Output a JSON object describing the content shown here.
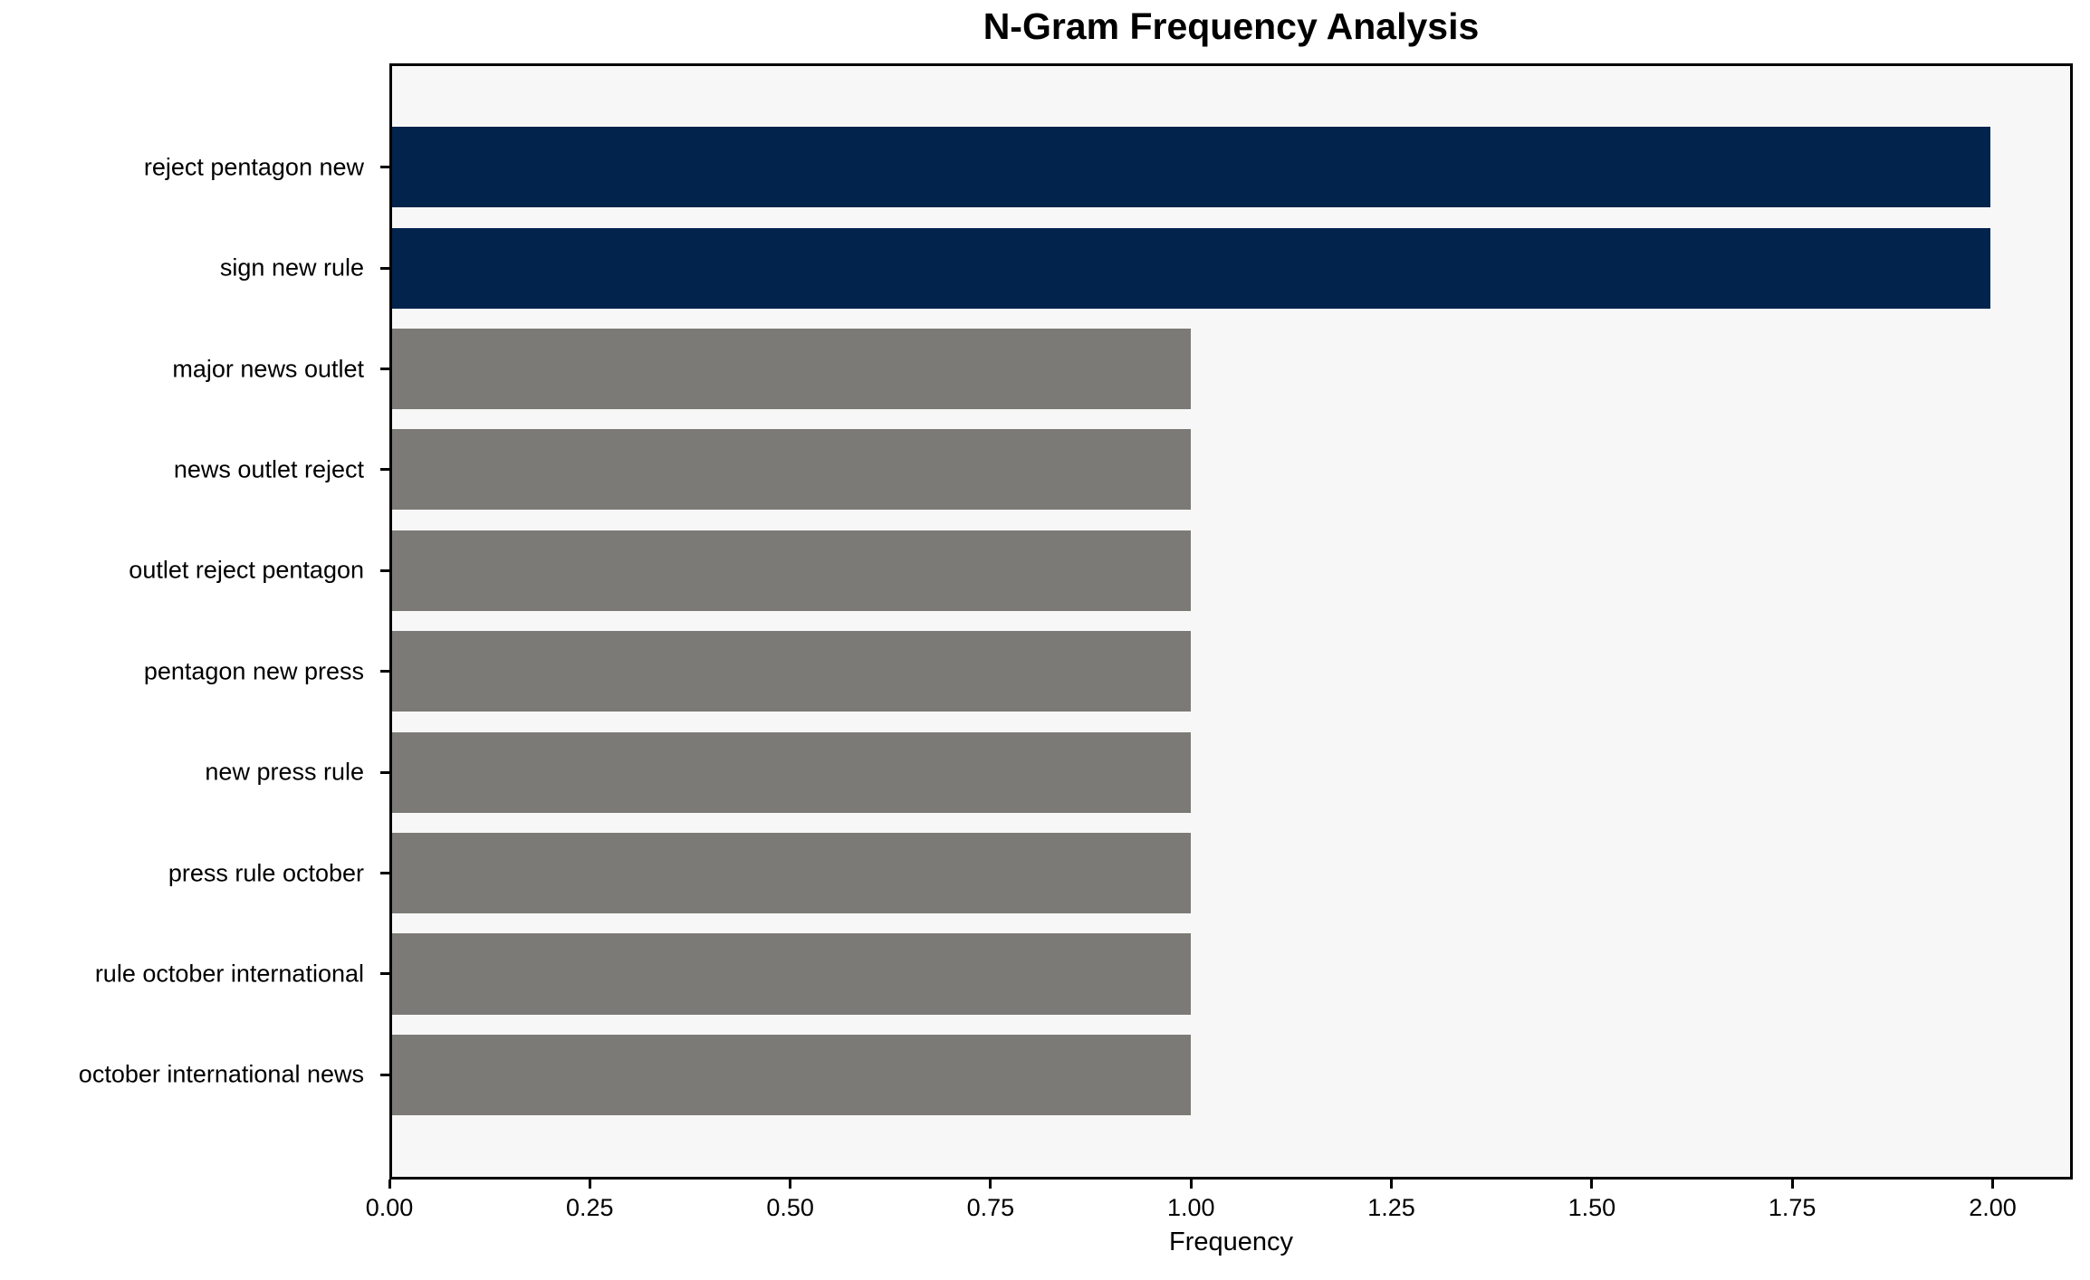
{
  "chart_data": {
    "type": "bar",
    "orientation": "horizontal",
    "title": "N-Gram Frequency Analysis",
    "xlabel": "Frequency",
    "ylabel": "",
    "categories": [
      "reject pentagon new",
      "sign new rule",
      "major news outlet",
      "news outlet reject",
      "outlet reject pentagon",
      "pentagon new press",
      "new press rule",
      "press rule october",
      "rule october international",
      "october international news"
    ],
    "values": [
      2,
      2,
      1,
      1,
      1,
      1,
      1,
      1,
      1,
      1
    ],
    "bar_colors": [
      "#02234c",
      "#02234c",
      "#7b7a76",
      "#7b7a76",
      "#7b7a76",
      "#7b7a76",
      "#7b7a76",
      "#7b7a76",
      "#7b7a76",
      "#7b7a76"
    ],
    "xlim": [
      0,
      2.1
    ],
    "x_ticks": [
      "0.00",
      "0.25",
      "0.50",
      "0.75",
      "1.00",
      "1.25",
      "1.50",
      "1.75",
      "2.00"
    ],
    "bar_height_fraction": 0.8,
    "grid": false,
    "legend": null,
    "colors": {
      "highlight": "#02234c",
      "default": "#7b7a76",
      "plot_background": "#f8f7f7",
      "figure_background": "#ffffff",
      "axis": "#000000",
      "text": "#000000"
    }
  }
}
